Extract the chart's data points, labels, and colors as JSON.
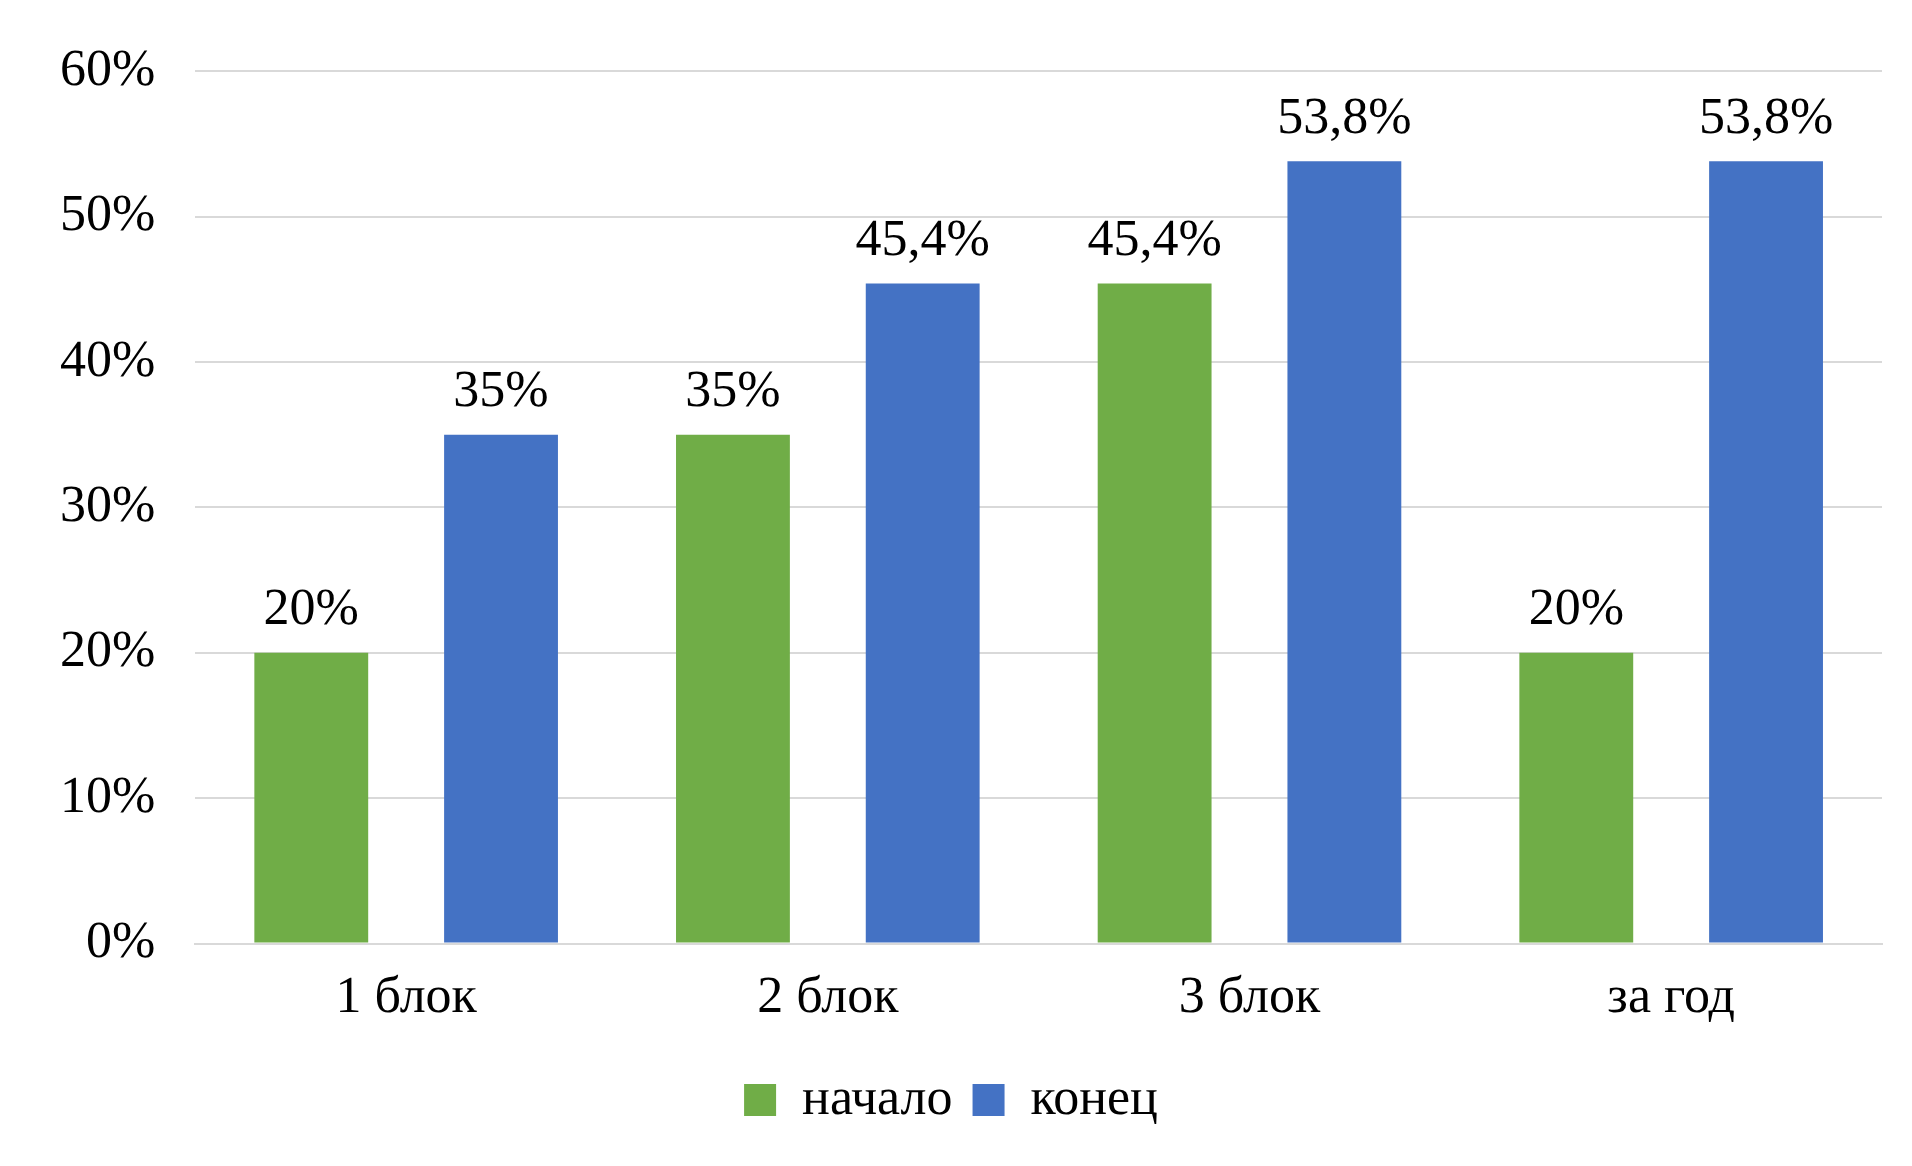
{
  "chart_data": {
    "type": "bar",
    "categories": [
      "1 блок",
      "2 блок",
      "3 блок",
      "за год"
    ],
    "series": [
      {
        "name": "начало",
        "color": "#70ad47",
        "values": [
          20,
          35,
          45.4,
          20
        ],
        "value_labels": [
          "20%",
          "35%",
          "45,4%",
          "20%"
        ]
      },
      {
        "name": "конец",
        "color": "#4472c4",
        "values": [
          35,
          45.4,
          53.8,
          53.8
        ],
        "value_labels": [
          "35%",
          "45,4%",
          "53,8%",
          "53,8%"
        ]
      }
    ],
    "ylim": [
      0,
      60
    ],
    "yticks": [
      {
        "value": 0,
        "label": "0%"
      },
      {
        "value": 10,
        "label": "10%"
      },
      {
        "value": 20,
        "label": "20%"
      },
      {
        "value": 30,
        "label": "30%"
      },
      {
        "value": 40,
        "label": "40%"
      },
      {
        "value": 50,
        "label": "50%"
      },
      {
        "value": 60,
        "label": "60%"
      }
    ],
    "grid": "y",
    "legend": "bottom"
  }
}
